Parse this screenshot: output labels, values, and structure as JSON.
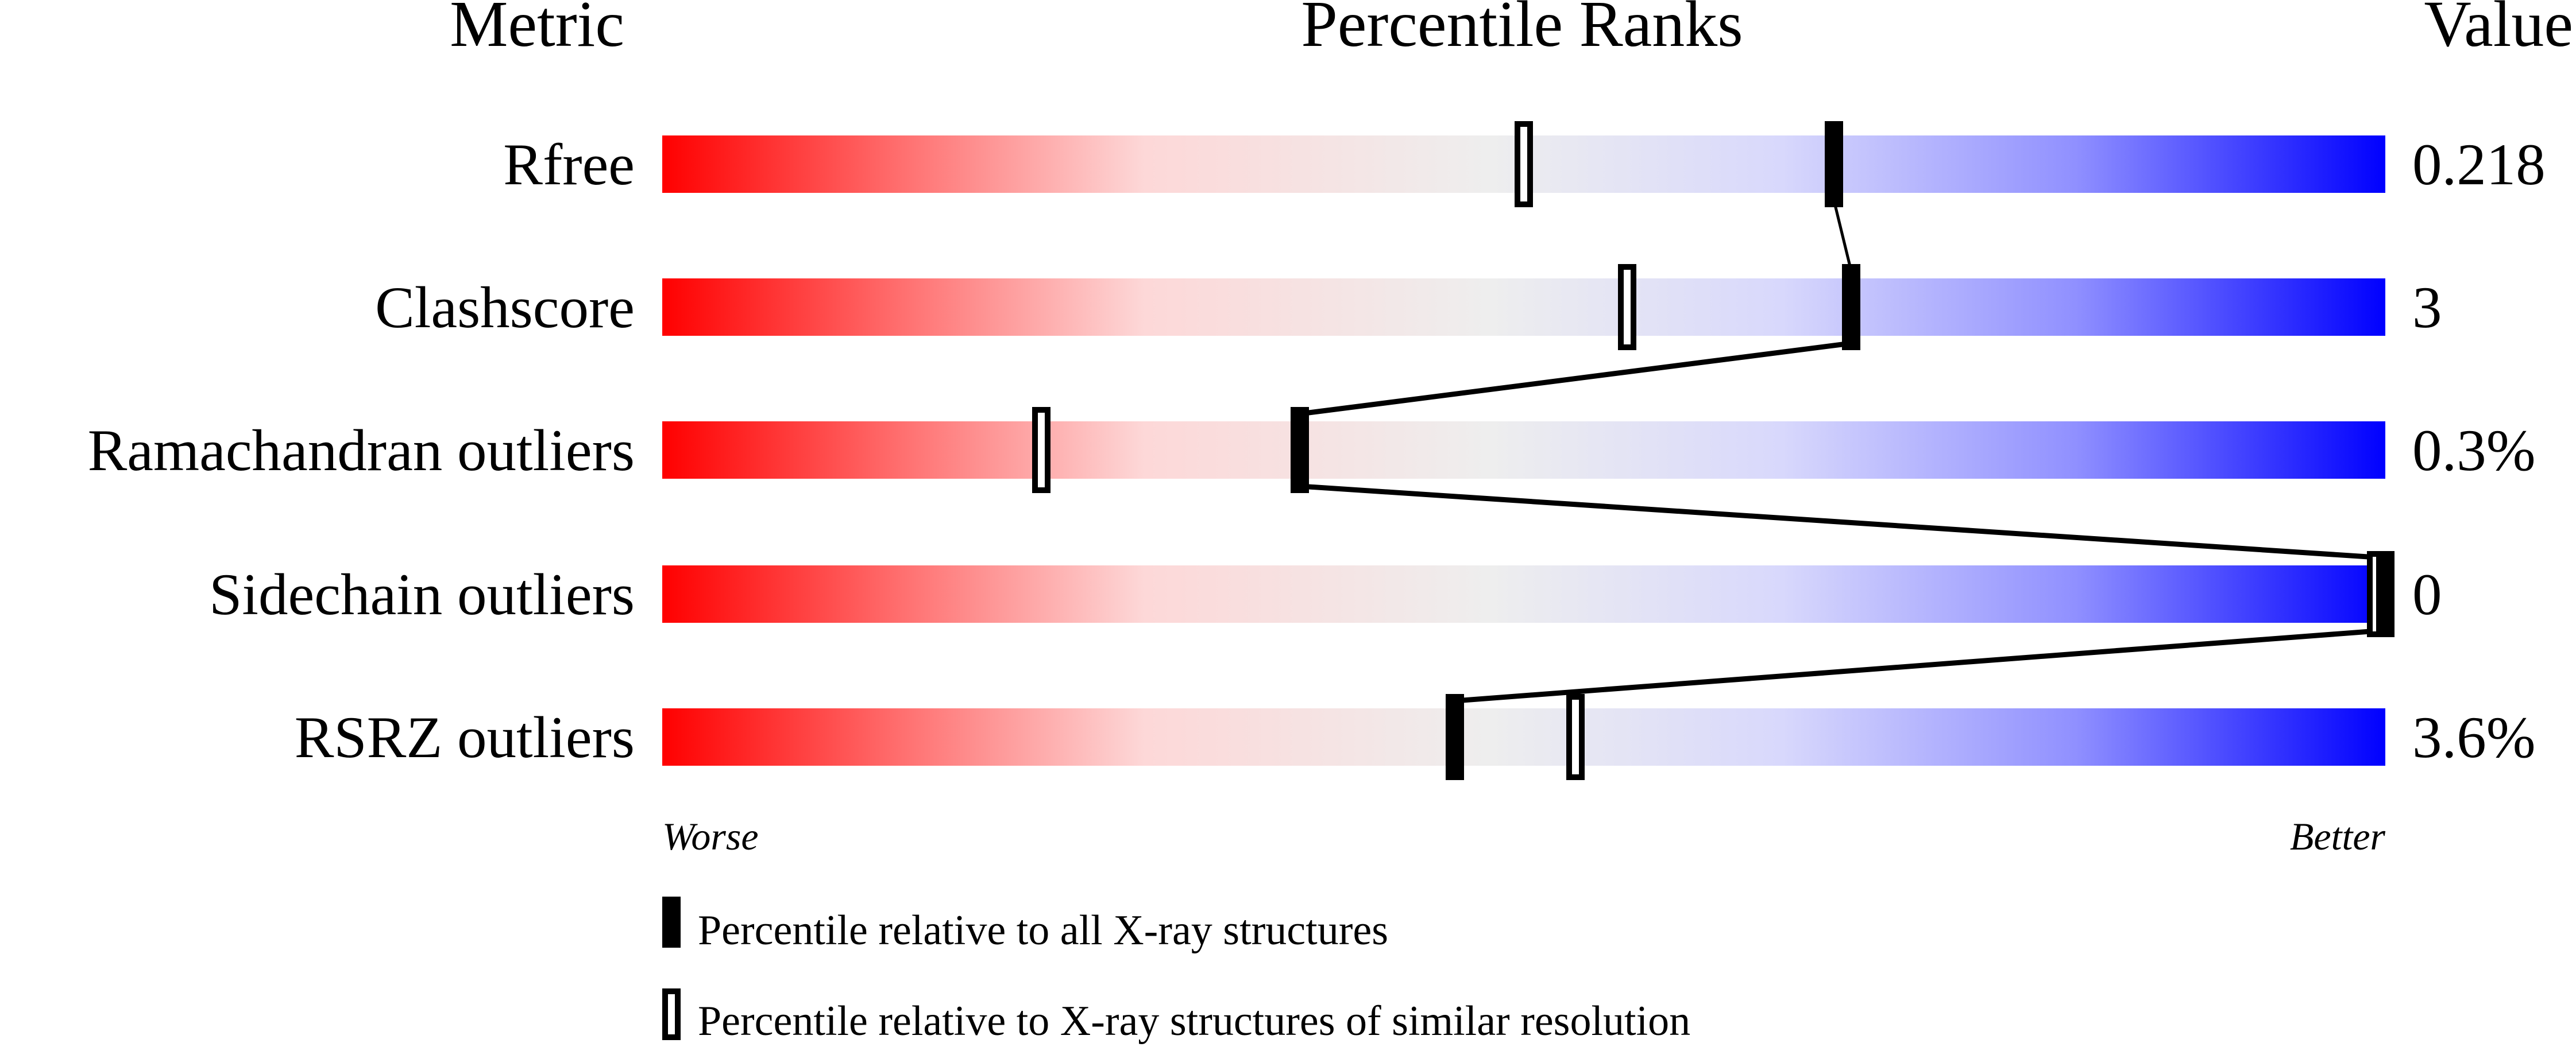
{
  "chart_data": {
    "type": "percentile-slider",
    "headers": {
      "metric": "Metric",
      "ranks": "Percentile Ranks",
      "value": "Value"
    },
    "xlim": [
      0,
      100
    ],
    "axis_labels": {
      "left": "Worse",
      "right": "Better"
    },
    "metrics": [
      {
        "name": "Rfree",
        "value": "0.218",
        "percentile_all": 68,
        "percentile_similar": 50
      },
      {
        "name": "Clashscore",
        "value": "3",
        "percentile_all": 69,
        "percentile_similar": 56
      },
      {
        "name": "Ramachandran outliers",
        "value": "0.3%",
        "percentile_all": 37,
        "percentile_similar": 22
      },
      {
        "name": "Sidechain outliers",
        "value": "0",
        "percentile_all": 100,
        "percentile_similar": 100
      },
      {
        "name": "RSRZ outliers",
        "value": "3.6%",
        "percentile_all": 46,
        "percentile_similar": 53
      }
    ],
    "legend": [
      {
        "marker": "filled",
        "label": "Percentile relative to all X-ray structures"
      },
      {
        "marker": "open",
        "label": "Percentile relative to X-ray structures of similar resolution"
      }
    ],
    "colors": {
      "worse": "#ff0000",
      "middle": "#eeeeee",
      "better": "#0000ff",
      "marker": "#000000"
    }
  }
}
